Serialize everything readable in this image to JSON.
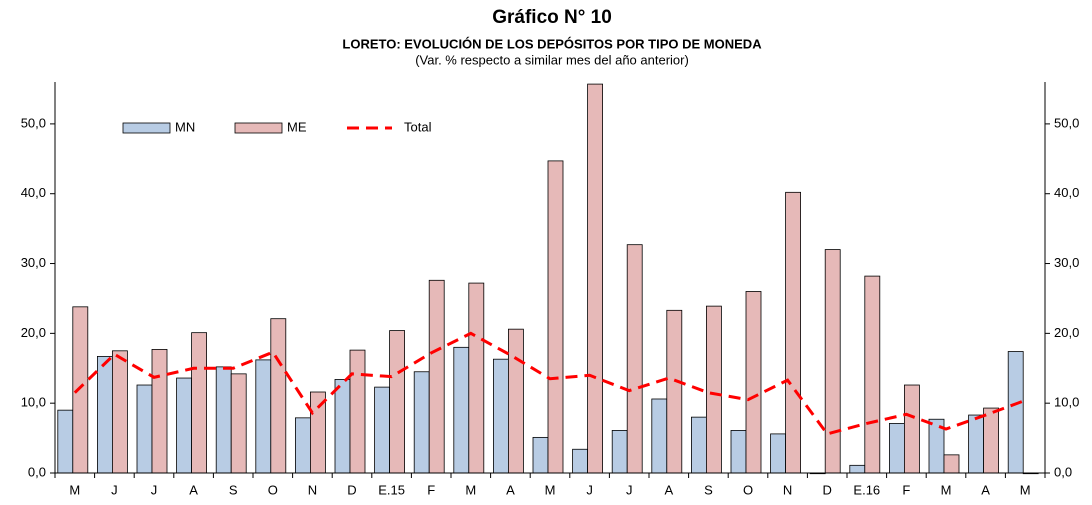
{
  "chart_data": {
    "type": "bar_line",
    "title": "Gráfico N° 10",
    "subtitle": "LORETO: EVOLUCIÓN DE LOS DEPÓSITOS POR TIPO DE MONEDA",
    "note": "(Var. % respecto a similar mes del año anterior)",
    "categories": [
      "M",
      "J",
      "J",
      "A",
      "S",
      "O",
      "N",
      "D",
      "E.15",
      "F",
      "M",
      "A",
      "M",
      "J",
      "J",
      "A",
      "S",
      "O",
      "N",
      "D",
      "E.16",
      "F",
      "M",
      "A",
      "M"
    ],
    "series": [
      {
        "name": "MN",
        "type": "bar",
        "color": "#b8cce4",
        "values": [
          9.0,
          16.7,
          12.6,
          13.6,
          15.2,
          16.2,
          7.9,
          13.4,
          12.3,
          14.5,
          18.0,
          16.3,
          5.1,
          3.4,
          6.1,
          10.6,
          8.0,
          6.1,
          5.6,
          -0.1,
          1.1,
          7.1,
          7.7,
          8.3,
          17.4
        ]
      },
      {
        "name": "ME",
        "type": "bar",
        "color": "#e6b9b8",
        "values": [
          23.8,
          17.5,
          17.7,
          20.1,
          14.2,
          22.1,
          11.6,
          17.6,
          20.4,
          27.6,
          27.2,
          20.6,
          44.7,
          55.7,
          32.7,
          23.3,
          23.9,
          26.0,
          40.2,
          32.0,
          28.2,
          12.6,
          2.6,
          9.3,
          -0.1
        ]
      },
      {
        "name": "Total",
        "type": "line",
        "color": "#ff0000",
        "values": [
          11.5,
          17.0,
          13.7,
          15.0,
          15.0,
          17.3,
          8.6,
          14.2,
          13.8,
          17.2,
          20.0,
          16.9,
          13.5,
          14.0,
          11.8,
          13.6,
          11.5,
          10.5,
          13.3,
          5.6,
          7.1,
          8.4,
          6.3,
          8.3,
          10.4
        ]
      }
    ],
    "ylim": [
      0,
      56
    ],
    "yticks": [
      {
        "value": 0,
        "label": "0,0"
      },
      {
        "value": 10,
        "label": "10,0"
      },
      {
        "value": 20,
        "label": "20,0"
      },
      {
        "value": 30,
        "label": "30,0"
      },
      {
        "value": 40,
        "label": "40,0"
      },
      {
        "value": 50,
        "label": "50,0"
      }
    ],
    "y2lim": [
      0,
      56
    ],
    "y2ticks": [
      {
        "value": 0,
        "label": "0,0"
      },
      {
        "value": 10,
        "label": "10,0"
      },
      {
        "value": 20,
        "label": "20,0"
      },
      {
        "value": 30,
        "label": "30,0"
      },
      {
        "value": 40,
        "label": "40,0"
      },
      {
        "value": 50,
        "label": "50,0"
      }
    ]
  }
}
